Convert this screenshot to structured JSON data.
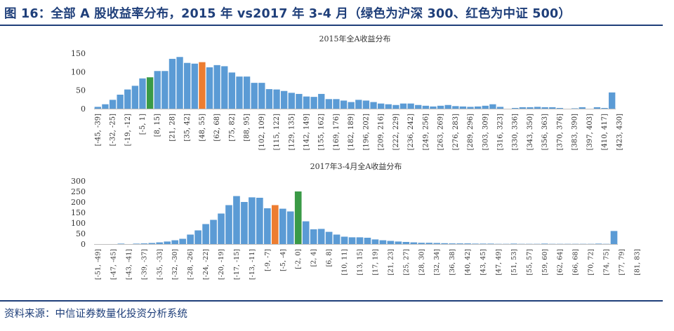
{
  "figure_title": "图 16：全部 A 股收益率分布，2015 年 vs2017 年 3-4 月（绿色为沪深 300、红色为中证 500）",
  "source": "资料来源：中信证券数量化投资分析系统",
  "colors": {
    "default": "#5b9bd5",
    "csi300": "#3a9a46",
    "csi500": "#ed7d31",
    "rule": "#1f3f7a"
  },
  "chart_data": [
    {
      "type": "bar",
      "title": "2015年全A收益分布",
      "ylim": [
        0,
        150
      ],
      "yticks": [
        0,
        50,
        100,
        150
      ],
      "grid": false,
      "categories_bin": {
        "start": -45,
        "width": 6.7,
        "count": 70
      },
      "tick_labels": [
        "[-45, -39]",
        "[-32, -25]",
        "[-19, -12]",
        "[-5, 1]",
        "[8, 15]",
        "[21, 28]",
        "[35, 42]",
        "[48, 55]",
        "[62, 68]",
        "[75, 82]",
        "[88, 95]",
        "[102, 109]",
        "[115, 122]",
        "[129, 135]",
        "[142, 149]",
        "[155, 162]",
        "[169, 176]",
        "[182, 189]",
        "[196, 202]",
        "[209, 216]",
        "[222, 229]",
        "[236, 242]",
        "[249, 256]",
        "[263, 269]",
        "[276, 283]",
        "[289, 296]",
        "[303, 309]",
        "[316, 323]",
        "[330, 336]",
        "[343, 350]",
        "[356, 363]",
        "[370, 376]",
        "[383, 390]",
        "[397, 403]",
        "[410, 417]",
        "[423, 430]"
      ],
      "values": [
        5,
        12,
        24,
        38,
        52,
        62,
        82,
        85,
        102,
        102,
        135,
        140,
        124,
        122,
        126,
        112,
        118,
        115,
        98,
        87,
        87,
        70,
        70,
        53,
        52,
        48,
        43,
        40,
        33,
        32,
        40,
        26,
        26,
        22,
        18,
        24,
        22,
        18,
        14,
        12,
        10,
        14,
        14,
        10,
        8,
        6,
        8,
        10,
        7,
        6,
        5,
        6,
        8,
        12,
        5,
        0,
        2,
        4,
        4,
        5,
        4,
        4,
        2,
        0,
        1,
        4,
        0,
        4,
        2,
        44
      ],
      "highlight": [
        {
          "index": 7,
          "color": "csi300"
        },
        {
          "index": 14,
          "color": "csi500"
        }
      ]
    },
    {
      "type": "bar",
      "title": "2017年3-4月全A收益分布",
      "ylim": [
        0,
        300
      ],
      "yticks": [
        0,
        50,
        100,
        150,
        200,
        250,
        300
      ],
      "grid": false,
      "categories_bin": {
        "start": -51,
        "width": 2,
        "count": 68
      },
      "tick_labels": [
        "[-51, -49]",
        "[-47, -45]",
        "[-43, -41]",
        "[-39, -37]",
        "[-35, -33]",
        "[-32, -30]",
        "[-28, -26]",
        "[-24, -22]",
        "[-20, -19]",
        "[-17, -15]",
        "[-13, -11]",
        "[-9, -7]",
        "[-5, -4]",
        "[-2, 0]",
        "[2, 4]",
        "[6, 8]",
        "[10, 11]",
        "[13, 15]",
        "[17, 19]",
        "[21, 23]",
        "[25, 27]",
        "[28, 30]",
        "[32, 34]",
        "[36, 38]",
        "[40, 42]",
        "[43, 45]",
        "[47, 49]",
        "[51, 53]",
        "[55, 57]",
        "[59, 60]",
        "[62, 64]",
        "[66, 68]",
        "[70, 72]",
        "[74, 75]",
        "[77, 79]",
        "[81, 83]"
      ],
      "values": [
        0,
        0,
        0,
        2,
        0,
        2,
        3,
        5,
        8,
        12,
        18,
        25,
        45,
        65,
        95,
        115,
        145,
        185,
        228,
        200,
        222,
        220,
        170,
        185,
        168,
        155,
        250,
        108,
        70,
        72,
        58,
        45,
        35,
        32,
        32,
        30,
        22,
        18,
        15,
        12,
        10,
        8,
        6,
        6,
        5,
        4,
        3,
        3,
        3,
        2,
        2,
        2,
        1,
        1,
        2,
        1,
        1,
        1,
        2,
        1,
        1,
        1,
        1,
        1,
        1,
        2,
        1,
        62
      ],
      "highlight": [
        {
          "index": 23,
          "color": "csi500"
        },
        {
          "index": 26,
          "color": "csi300"
        }
      ]
    }
  ]
}
